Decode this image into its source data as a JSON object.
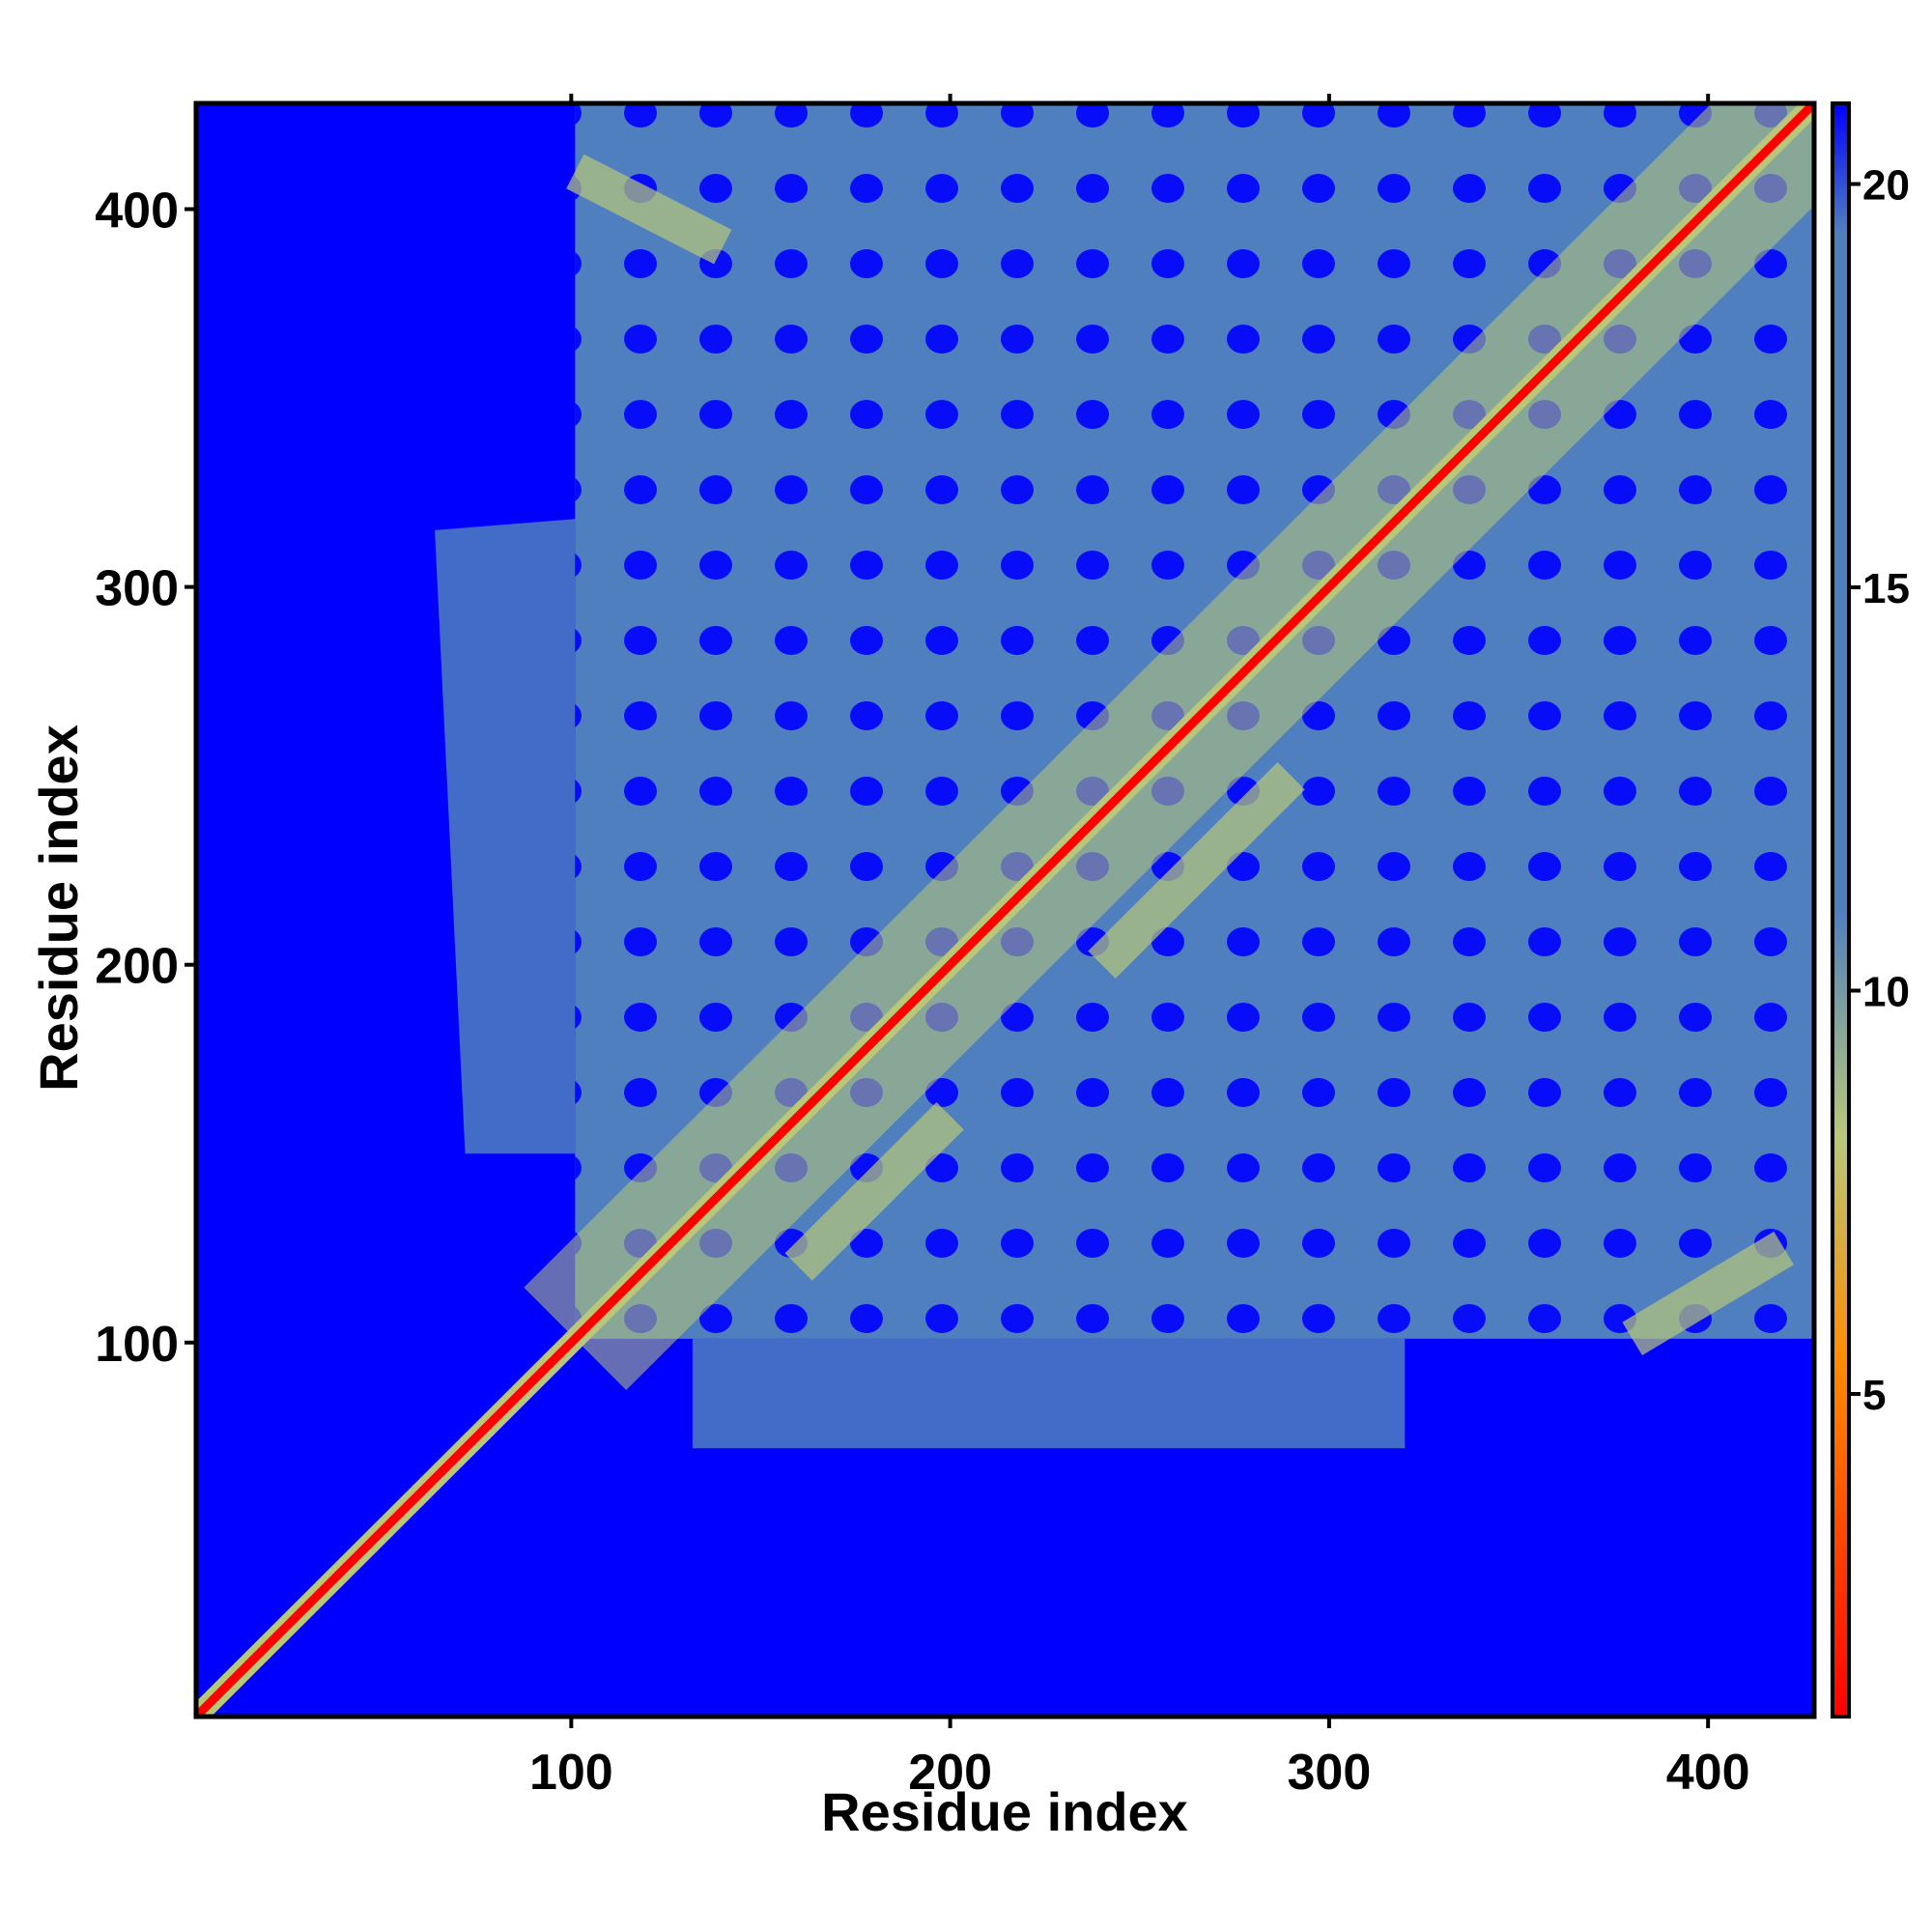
{
  "chart_data": {
    "type": "heatmap",
    "title": "",
    "xlabel": "Residue index",
    "ylabel": "Residue index",
    "xlim": [
      1,
      428
    ],
    "ylim": [
      1,
      428
    ],
    "xticks": [
      100,
      200,
      300,
      400
    ],
    "yticks": [
      100,
      200,
      300,
      400
    ],
    "xtick_labels": [
      "100",
      "200",
      "300",
      "400"
    ],
    "ytick_labels": [
      "100",
      "200",
      "300",
      "400"
    ],
    "grid": false,
    "colorbar": {
      "placement": "right",
      "range": [
        1,
        21
      ],
      "ticks": [
        5,
        10,
        15,
        20
      ],
      "tick_labels": [
        "5",
        "10",
        "15",
        "20"
      ],
      "colors": [
        "#ff0000",
        "#ff8c00",
        "#b8c878",
        "#4f7fbf",
        "#0000ff"
      ]
    },
    "description_values": {
      "diagonal_value": 1,
      "background_value": 21,
      "matrix_size": 428
    }
  }
}
